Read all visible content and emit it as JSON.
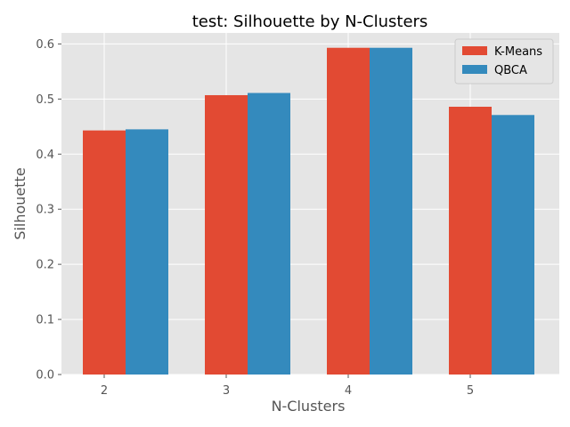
{
  "chart_data": {
    "type": "bar",
    "title": "test: Silhouette by N-Clusters",
    "xlabel": "N-Clusters",
    "ylabel": "Silhouette",
    "categories": [
      "2",
      "3",
      "4",
      "5"
    ],
    "series": [
      {
        "name": "K-Means",
        "color": "#E24A33",
        "values": [
          0.443,
          0.507,
          0.593,
          0.486
        ]
      },
      {
        "name": "QBCA",
        "color": "#348ABD",
        "values": [
          0.445,
          0.511,
          0.593,
          0.471
        ]
      }
    ],
    "ylim": [
      0,
      0.62
    ],
    "yticks": [
      "0.0",
      "0.1",
      "0.2",
      "0.3",
      "0.4",
      "0.5",
      "0.6"
    ],
    "grid": true,
    "legend": "top-right"
  }
}
